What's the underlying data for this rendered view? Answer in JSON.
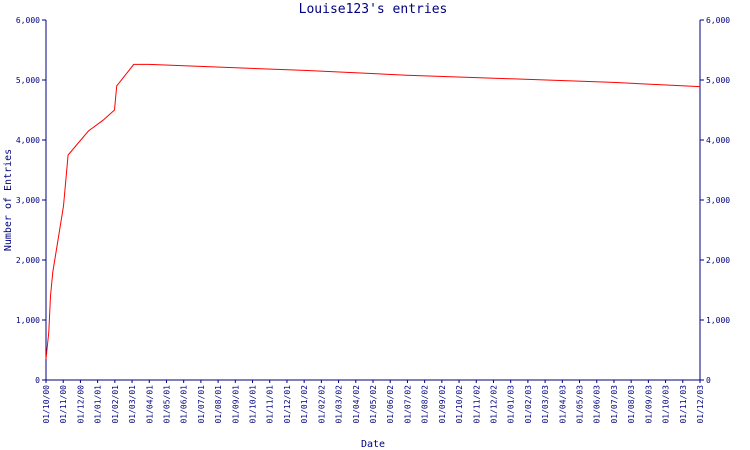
{
  "chart_data": {
    "type": "line",
    "title": "Louise123's entries",
    "xlabel": "Date",
    "ylabel": "Number of Entries",
    "ylim": [
      0,
      6000
    ],
    "y_ticks": [
      0,
      1000,
      2000,
      3000,
      4000,
      5000,
      6000
    ],
    "y_tick_labels": [
      "0",
      "1,000",
      "2,000",
      "3,000",
      "4,000",
      "5,000",
      "6,000"
    ],
    "x_range": [
      "2000-10-01",
      "2003-12-01"
    ],
    "x_tick_labels": [
      "01/10/00",
      "01/11/00",
      "01/12/00",
      "01/01/01",
      "01/02/01",
      "01/03/01",
      "01/04/01",
      "01/05/01",
      "01/06/01",
      "01/07/01",
      "01/08/01",
      "01/09/01",
      "01/10/01",
      "01/11/01",
      "01/12/01",
      "01/01/02",
      "01/02/02",
      "01/03/02",
      "01/04/02",
      "01/05/02",
      "01/06/02",
      "01/07/02",
      "01/08/02",
      "01/09/02",
      "01/10/02",
      "01/11/02",
      "01/12/02",
      "01/01/03",
      "01/02/03",
      "01/03/03",
      "01/04/03",
      "01/05/03",
      "01/06/03",
      "01/07/03",
      "01/08/03",
      "01/09/03",
      "01/10/03",
      "01/11/03",
      "01/12/03"
    ],
    "grid": false,
    "legend": "none",
    "series": [
      {
        "color": "#ff0000",
        "points": [
          {
            "x": "2000-10-01",
            "y": 350
          },
          {
            "x": "2000-10-06",
            "y": 800
          },
          {
            "x": "2000-10-09",
            "y": 1400
          },
          {
            "x": "2000-10-13",
            "y": 1800
          },
          {
            "x": "2000-10-20",
            "y": 2200
          },
          {
            "x": "2000-11-01",
            "y": 2900
          },
          {
            "x": "2000-11-09",
            "y": 3750
          },
          {
            "x": "2000-12-15",
            "y": 4150
          },
          {
            "x": "2001-01-10",
            "y": 4330
          },
          {
            "x": "2001-01-30",
            "y": 4500
          },
          {
            "x": "2001-02-03",
            "y": 4900
          },
          {
            "x": "2001-03-05",
            "y": 5260
          },
          {
            "x": "2001-04-01",
            "y": 5260
          },
          {
            "x": "2002-01-01",
            "y": 5160
          },
          {
            "x": "2002-07-01",
            "y": 5080
          },
          {
            "x": "2003-01-01",
            "y": 5020
          },
          {
            "x": "2003-07-01",
            "y": 4960
          },
          {
            "x": "2003-12-01",
            "y": 4890
          }
        ]
      }
    ]
  },
  "colors": {
    "axis": "#000080",
    "text": "#000080",
    "series": "#ff0000",
    "background": "#ffffff"
  }
}
